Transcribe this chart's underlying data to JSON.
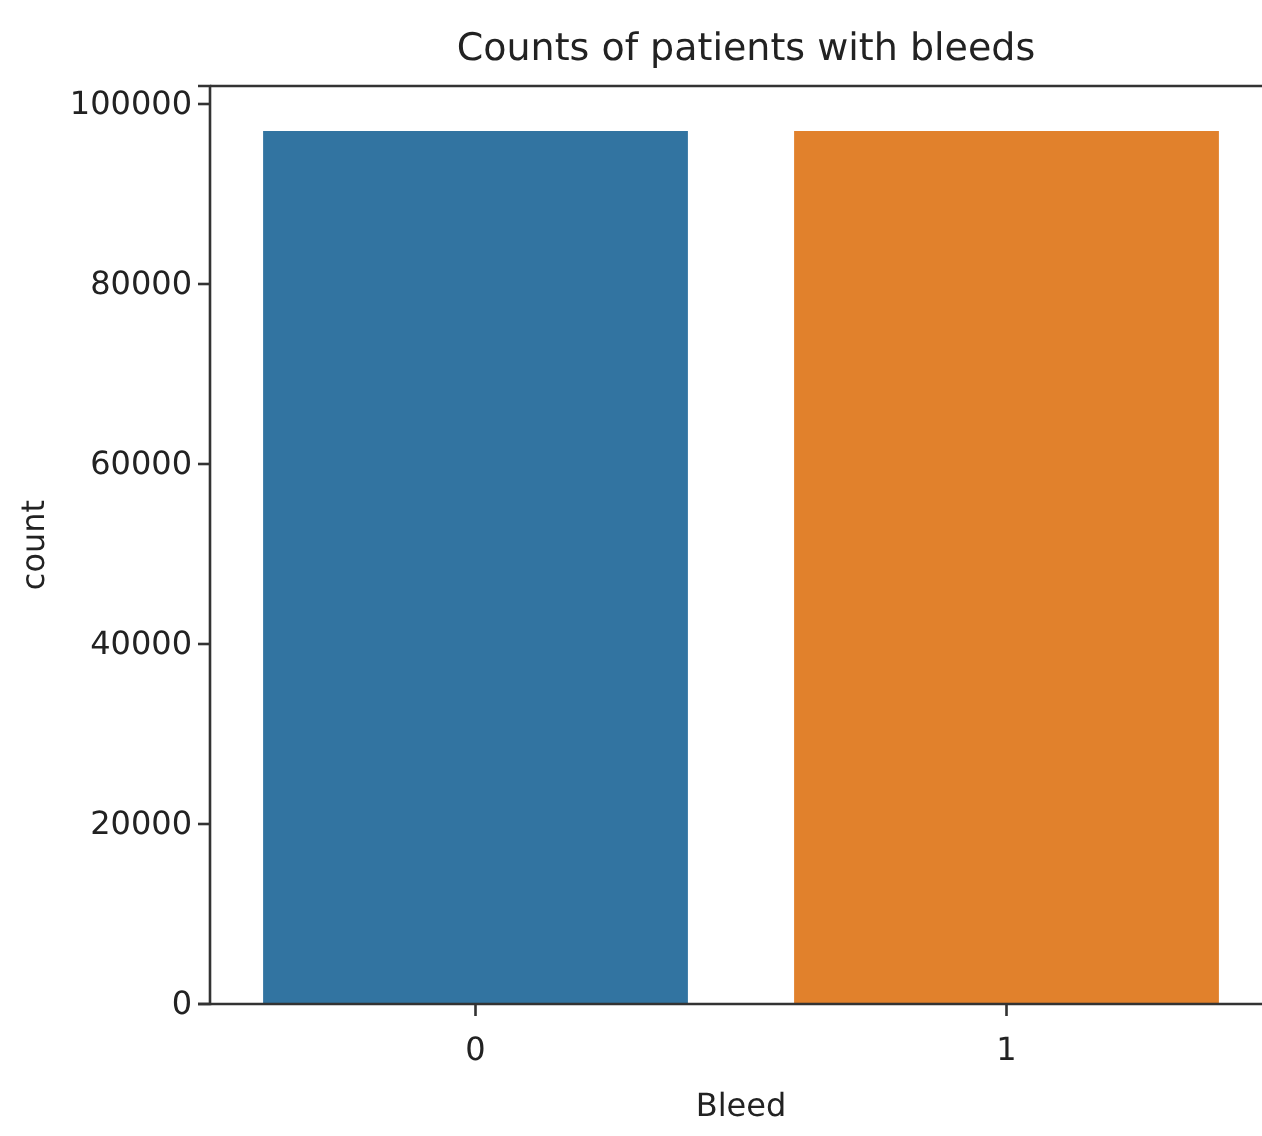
{
  "chart_data": {
    "type": "bar",
    "title": "Counts of patients with bleeds",
    "xlabel": "Bleed",
    "ylabel": "count",
    "categories": [
      "0",
      "1"
    ],
    "values": [
      97000,
      97000
    ],
    "colors": [
      "#3274a1",
      "#e1812c"
    ],
    "ylim": [
      0,
      102000
    ],
    "yticks": [
      0,
      20000,
      40000,
      60000,
      80000,
      100000
    ],
    "grid": false
  }
}
